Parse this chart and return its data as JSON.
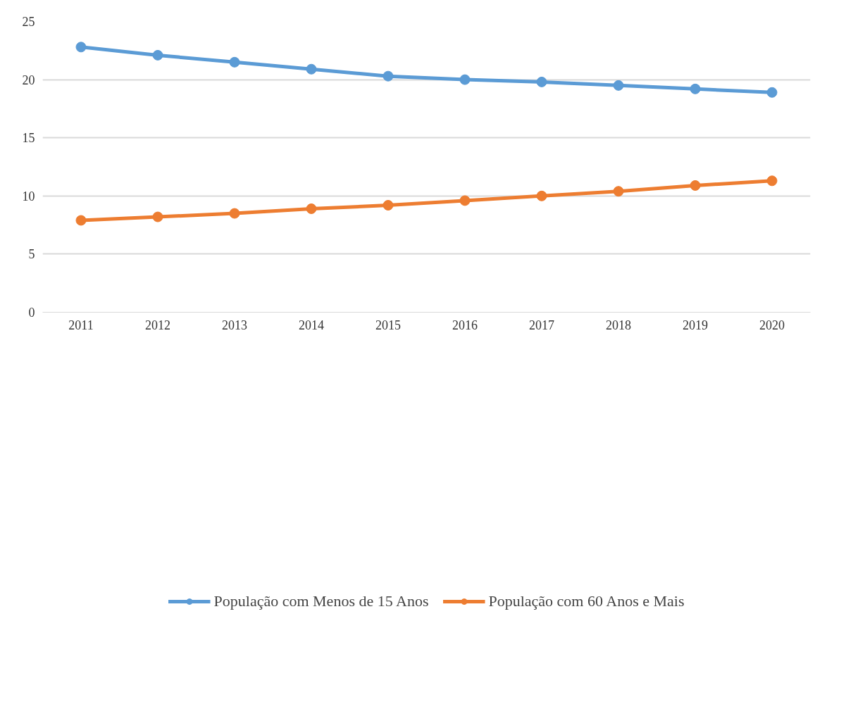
{
  "chart_data": {
    "type": "line",
    "categories": [
      "2011",
      "2012",
      "2013",
      "2014",
      "2015",
      "2016",
      "2017",
      "2018",
      "2019",
      "2020"
    ],
    "series": [
      {
        "name": "População com Menos de 15 Anos",
        "color": "#5b9bd5",
        "values": [
          22.8,
          22.1,
          21.5,
          20.9,
          20.3,
          20.0,
          19.8,
          19.5,
          19.2,
          18.9
        ]
      },
      {
        "name": "População com 60 Anos e Mais",
        "color": "#ed7d31",
        "values": [
          7.9,
          8.2,
          8.5,
          8.9,
          9.2,
          9.6,
          10.0,
          10.4,
          10.9,
          11.3
        ]
      }
    ],
    "ylim": [
      0,
      25
    ],
    "yticks": [
      0,
      5,
      10,
      15,
      20,
      25
    ],
    "grid": "y",
    "legend": "bottom",
    "marker": "circle",
    "line_style": "solid"
  }
}
